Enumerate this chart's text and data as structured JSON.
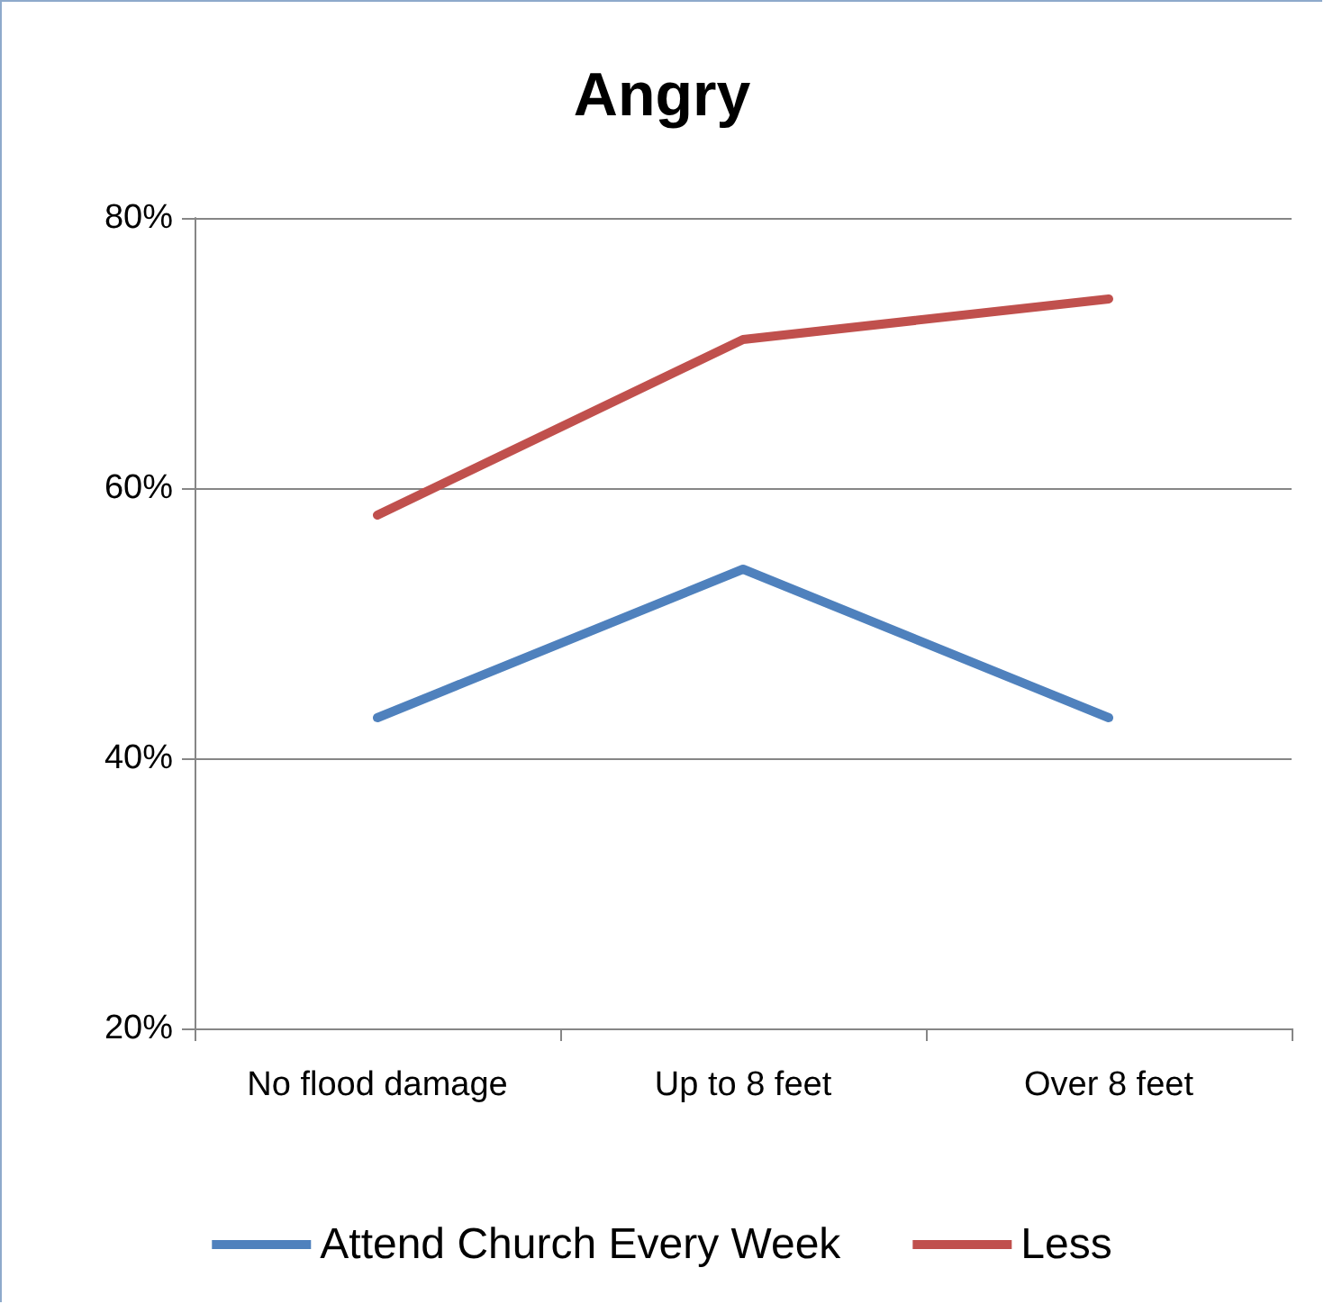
{
  "chart_data": {
    "type": "line",
    "title": "Angry",
    "categories": [
      "No flood damage",
      "Up to 8 feet",
      "Over 8 feet"
    ],
    "series": [
      {
        "name": "Attend Church Every Week",
        "color": "#4f81bd",
        "values": [
          43,
          54,
          43
        ]
      },
      {
        "name": "Less",
        "color": "#c0504d",
        "values": [
          58,
          71,
          74
        ]
      }
    ],
    "ylim": [
      20,
      80
    ],
    "yticks": [
      {
        "value": 20,
        "label": "20%"
      },
      {
        "value": 40,
        "label": "40%"
      },
      {
        "value": 60,
        "label": "60%"
      },
      {
        "value": 80,
        "label": "80%"
      }
    ],
    "grid": "y",
    "legend": "bottom",
    "marker": "none",
    "line_style": "solid"
  }
}
